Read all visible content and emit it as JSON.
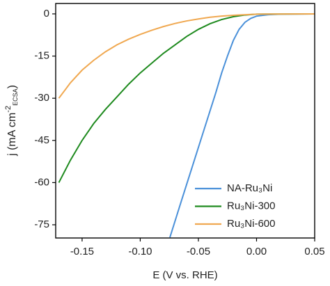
{
  "chart_data": {
    "type": "line",
    "x_label": "E (V vs. RHE)",
    "y_label": {
      "main": "j (mA cm",
      "sup": "-2",
      "sub": "ECSA",
      "end": ")"
    },
    "xlim": [
      -0.1727,
      0.05
    ],
    "ylim": [
      -79.7,
      3.7
    ],
    "xticks": [
      {
        "value": -0.15,
        "label": "-0.15"
      },
      {
        "value": -0.1,
        "label": "-0.10"
      },
      {
        "value": -0.05,
        "label": "-0.05"
      },
      {
        "value": 0,
        "label": "0.00"
      },
      {
        "value": 0.05,
        "label": "0.05"
      }
    ],
    "yticks": [
      0,
      -15,
      -30,
      -45,
      -60,
      -75
    ],
    "legend": "lower right",
    "series": [
      {
        "name": "NA-Ru₃Ni",
        "color": "#4a90d9",
        "x": [
          -0.0745,
          -0.065,
          -0.055,
          -0.045,
          -0.035,
          -0.03,
          -0.025,
          -0.02,
          -0.015,
          -0.01,
          -0.005,
          0,
          0.01,
          0.02,
          0.05
        ],
        "values": [
          -79.5,
          -67,
          -54,
          -41,
          -28,
          -21,
          -15,
          -9.5,
          -5.5,
          -3,
          -1.6,
          -0.8,
          -0.3,
          -0.1,
          0
        ]
      },
      {
        "name": "Ru₃Ni-300",
        "color": "#1e8a1e",
        "x": [
          -0.17,
          -0.16,
          -0.15,
          -0.14,
          -0.13,
          -0.12,
          -0.11,
          -0.1,
          -0.09,
          -0.08,
          -0.07,
          -0.06,
          -0.05,
          -0.04,
          -0.03,
          -0.02,
          -0.01,
          0,
          0.05
        ],
        "values": [
          -60,
          -52,
          -45,
          -39,
          -34,
          -29.5,
          -25,
          -21,
          -17.5,
          -14,
          -11,
          -8,
          -5.5,
          -3.5,
          -2,
          -1,
          -0.4,
          -0.1,
          0
        ]
      },
      {
        "name": "Ru₃Ni-600",
        "color": "#f0a850",
        "x": [
          -0.17,
          -0.16,
          -0.15,
          -0.14,
          -0.13,
          -0.12,
          -0.11,
          -0.1,
          -0.09,
          -0.08,
          -0.07,
          -0.06,
          -0.05,
          -0.04,
          -0.03,
          -0.02,
          -0.01,
          0,
          0.05
        ],
        "values": [
          -30,
          -24.5,
          -20,
          -16.5,
          -13.5,
          -11,
          -9,
          -7.3,
          -5.8,
          -4.5,
          -3.4,
          -2.5,
          -1.8,
          -1.2,
          -0.8,
          -0.5,
          -0.3,
          -0.1,
          0
        ]
      }
    ]
  }
}
